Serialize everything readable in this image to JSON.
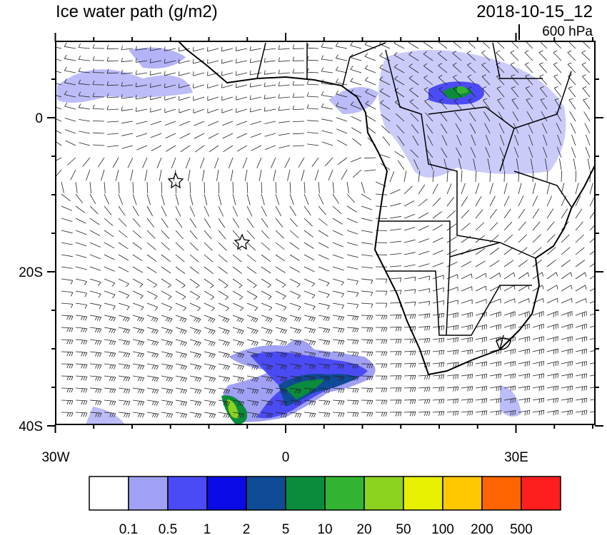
{
  "header": {
    "title": "Ice water path (g/m2)",
    "time": "2018-10-15_12",
    "level": "600 hPa"
  },
  "map": {
    "lat_labels": [
      "0",
      "20S",
      "40S"
    ],
    "lon_labels": [
      "30W",
      "0",
      "30E"
    ]
  },
  "colorbar": {
    "colors": [
      "#ffffff",
      "#a0a0f5",
      "#4b4bf5",
      "#0a0ae6",
      "#0f4b96",
      "#0a8c3c",
      "#32b432",
      "#8cd21e",
      "#e6f000",
      "#ffc800",
      "#ff6400",
      "#ff1e1e"
    ],
    "labels": [
      "0.1",
      "0.5",
      "1",
      "2",
      "5",
      "10",
      "20",
      "50",
      "100",
      "200",
      "500"
    ]
  }
}
